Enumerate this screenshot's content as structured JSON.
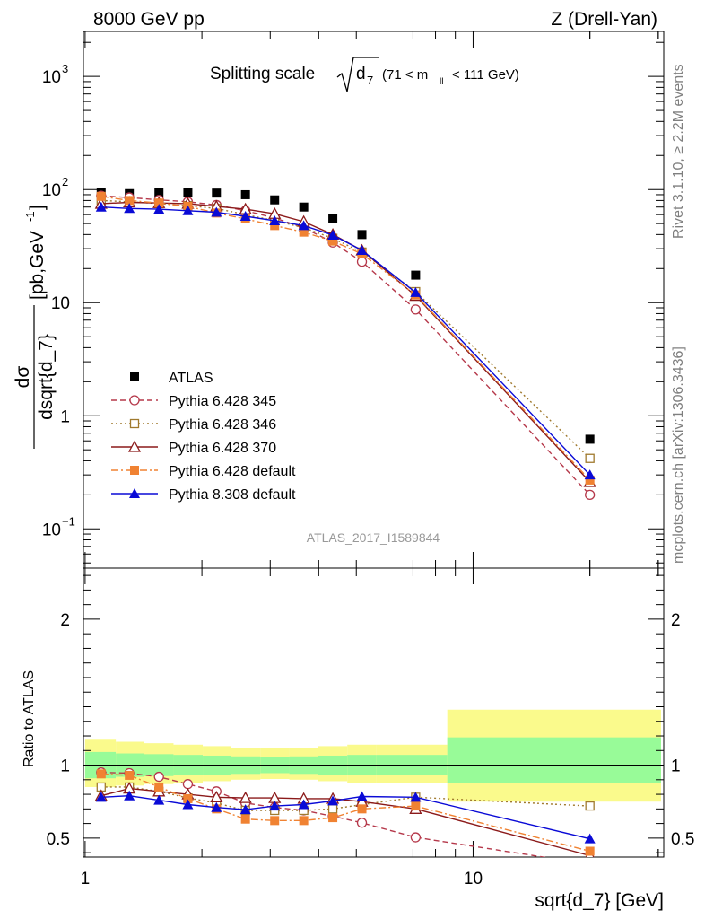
{
  "header": {
    "left": "8000 GeV pp",
    "right": "Z (Drell-Yan)"
  },
  "main_title": {
    "text": "Splitting scale",
    "symbol": "d",
    "subscript": "7",
    "range_open": "(71 < m",
    "range_sub": "ll",
    "range_close": "< 111 GeV)"
  },
  "side_labels": {
    "right_top": "Rivet 3.1.10, ≥ 2.2M events",
    "right_bottom": "mcplots.cern.ch [arXiv:1306.3436]"
  },
  "watermark": "ATLAS_2017_I1589844",
  "ylabel_top": {
    "numerator": "dσ",
    "denominator": "dsqrt{d_7}",
    "unit_open": "[pb,GeV",
    "unit_exp": "-1",
    "unit_close": "]"
  },
  "ylabel_bottom": "Ratio to ATLAS",
  "xlabel": "sqrt{d_7} [GeV]",
  "colors": {
    "atlas": "#000000",
    "py345": "#b5384a",
    "py346": "#a07a2e",
    "py370": "#8b1a1a",
    "py6def": "#f08232",
    "py8def": "#0a0ad6",
    "band_inner": "#98fb98",
    "band_outer": "#fafa8c"
  },
  "chart_data": [
    {
      "type": "scatter",
      "panel": "main",
      "xscale": "log",
      "yscale": "log",
      "xlim": [
        0.99,
        31
      ],
      "ylim": [
        0.045,
        2500
      ],
      "xticks": [
        {
          "value": 1,
          "label": "1"
        },
        {
          "value": 10,
          "label": "10"
        }
      ],
      "yticks": [
        {
          "value": 0.1,
          "base": "10",
          "exp": "−1"
        },
        {
          "value": 1,
          "base": "1",
          "exp": ""
        },
        {
          "value": 10,
          "base": "10",
          "exp": ""
        },
        {
          "value": 100,
          "base": "10",
          "exp": "2"
        },
        {
          "value": 1000,
          "base": "10",
          "exp": "3"
        }
      ],
      "legend_position": "middle-left",
      "x": [
        1.1,
        1.3,
        1.55,
        1.84,
        2.18,
        2.59,
        3.08,
        3.66,
        4.35,
        5.17,
        7.11,
        20.0
      ],
      "series": [
        {
          "name": "ATLAS",
          "key": "atlas",
          "marker": "square-filled",
          "line": "none",
          "values": [
            95,
            92,
            94,
            94,
            93,
            90,
            81,
            70,
            55,
            40,
            17.5,
            0.62
          ]
        },
        {
          "name": "Pythia 6.428 345",
          "key": "py345",
          "marker": "circle-open",
          "line": "dashed",
          "values": [
            88,
            85,
            81,
            78,
            73,
            65,
            56,
            46,
            34,
            23,
            8.7,
            0.2
          ]
        },
        {
          "name": "Pythia 6.428 346",
          "key": "py346",
          "marker": "square-open",
          "line": "dotted",
          "values": [
            80,
            78,
            75,
            72,
            68,
            60,
            53,
            46,
            37,
            28,
            12.5,
            0.42
          ]
        },
        {
          "name": "Pythia 6.428 370",
          "key": "py370",
          "marker": "triangle-open",
          "line": "solid",
          "values": [
            75,
            77,
            76,
            75,
            71,
            67,
            61,
            52,
            40,
            29,
            11.5,
            0.26
          ]
        },
        {
          "name": "Pythia 6.428 default",
          "key": "py6def",
          "marker": "square-filled",
          "line": "dashdot",
          "values": [
            87,
            80,
            76,
            71,
            62,
            55,
            48,
            42,
            35,
            27,
            11.7,
            0.27
          ]
        },
        {
          "name": "Pythia 8.308 default",
          "key": "py8def",
          "marker": "triangle-filled",
          "line": "solid",
          "values": [
            70,
            68,
            67,
            65,
            63,
            58,
            53,
            48,
            39.5,
            29,
            12.3,
            0.3
          ]
        }
      ]
    },
    {
      "type": "line",
      "panel": "ratio",
      "xscale": "log",
      "yscale": "linear",
      "xlim": [
        0.99,
        31
      ],
      "ylim": [
        0.37,
        2.35
      ],
      "xticks": [
        {
          "value": 1,
          "label": "1"
        },
        {
          "value": 10,
          "label": "10"
        }
      ],
      "yticks": [
        {
          "value": 0.5,
          "label": "0.5"
        },
        {
          "value": 1,
          "label": "1"
        },
        {
          "value": 2,
          "label": "2"
        }
      ],
      "reference_line": 1,
      "uncertainty_band": {
        "edges": [
          1.0,
          1.2,
          1.42,
          1.69,
          2.01,
          2.38,
          2.83,
          3.36,
          3.99,
          4.74,
          5.64,
          8.58,
          30.5
        ],
        "inner": [
          [
            0.91,
            1.09
          ],
          [
            0.92,
            1.08
          ],
          [
            0.925,
            1.075
          ],
          [
            0.93,
            1.07
          ],
          [
            0.935,
            1.065
          ],
          [
            0.94,
            1.06
          ],
          [
            0.945,
            1.055
          ],
          [
            0.94,
            1.06
          ],
          [
            0.935,
            1.065
          ],
          [
            0.93,
            1.07
          ],
          [
            0.93,
            1.07
          ],
          [
            0.88,
            1.19
          ]
        ],
        "outer": [
          [
            0.85,
            1.18
          ],
          [
            0.86,
            1.16
          ],
          [
            0.87,
            1.15
          ],
          [
            0.88,
            1.14
          ],
          [
            0.89,
            1.13
          ],
          [
            0.9,
            1.12
          ],
          [
            0.905,
            1.115
          ],
          [
            0.9,
            1.12
          ],
          [
            0.89,
            1.13
          ],
          [
            0.88,
            1.14
          ],
          [
            0.88,
            1.14
          ],
          [
            0.75,
            1.38
          ]
        ]
      },
      "x": [
        1.1,
        1.3,
        1.55,
        1.84,
        2.18,
        2.59,
        3.08,
        3.66,
        4.35,
        5.17,
        7.11,
        20.0
      ],
      "series": [
        {
          "key": "py345",
          "marker": "circle-open",
          "line": "dashed",
          "values": [
            0.95,
            0.945,
            0.92,
            0.87,
            0.82,
            0.74,
            0.71,
            0.69,
            0.65,
            0.605,
            0.505,
            0.32
          ]
        },
        {
          "key": "py346",
          "marker": "square-open",
          "line": "dotted",
          "values": [
            0.85,
            0.85,
            0.82,
            0.775,
            0.74,
            0.69,
            0.69,
            0.69,
            0.7,
            0.73,
            0.78,
            0.72
          ]
        },
        {
          "key": "py370",
          "marker": "triangle-open",
          "line": "solid",
          "values": [
            0.79,
            0.84,
            0.82,
            0.8,
            0.78,
            0.775,
            0.775,
            0.77,
            0.77,
            0.75,
            0.7,
            0.38
          ]
        },
        {
          "key": "py6def",
          "marker": "square-filled",
          "line": "dashdot",
          "values": [
            0.94,
            0.93,
            0.85,
            0.77,
            0.7,
            0.63,
            0.62,
            0.62,
            0.64,
            0.7,
            0.72,
            0.41
          ]
        },
        {
          "key": "py8def",
          "marker": "triangle-filled",
          "line": "solid",
          "values": [
            0.78,
            0.79,
            0.76,
            0.73,
            0.71,
            0.695,
            0.72,
            0.73,
            0.755,
            0.785,
            0.78,
            0.495
          ]
        }
      ]
    }
  ]
}
